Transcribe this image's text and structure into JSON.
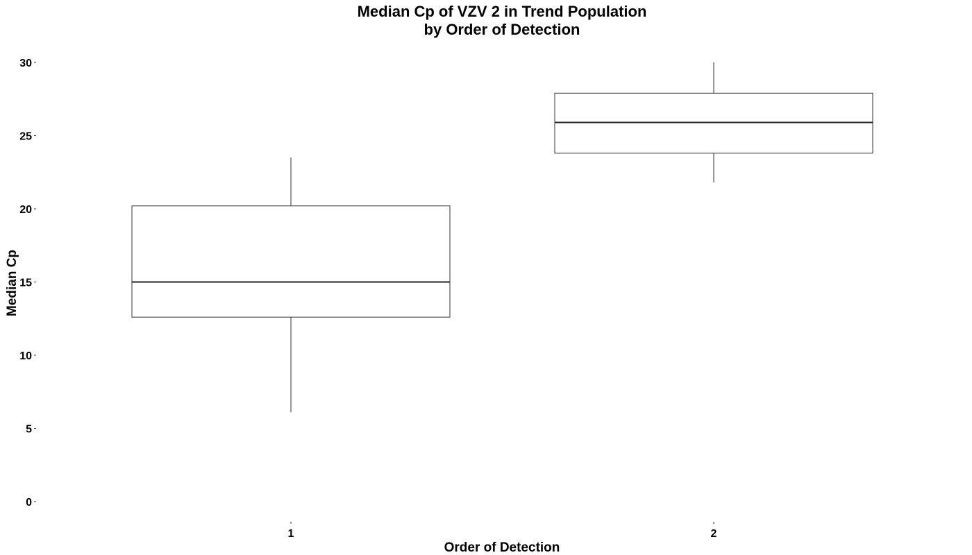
{
  "chart_data": {
    "type": "boxplot",
    "title": [
      "Median Cp of VZV 2 in Trend Population",
      "by Order of Detection"
    ],
    "xlabel": "Order of Detection",
    "ylabel": "Median Cp",
    "ylim": [
      0,
      30
    ],
    "yticks": [
      0,
      5,
      10,
      15,
      20,
      25,
      30
    ],
    "grid": false,
    "categories": [
      "1",
      "2"
    ],
    "boxes": [
      {
        "category": "1",
        "whisker_low": 6.1,
        "q1": 12.6,
        "median": 15.0,
        "q3": 20.2,
        "whisker_high": 23.5
      },
      {
        "category": "2",
        "whisker_low": 21.8,
        "q1": 23.8,
        "median": 25.9,
        "q3": 27.9,
        "whisker_high": 30.0
      }
    ]
  }
}
